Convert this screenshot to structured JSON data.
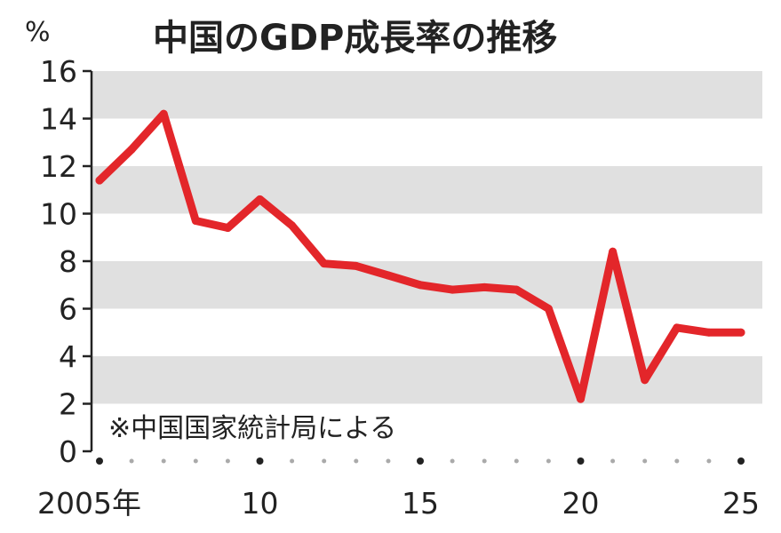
{
  "chart_data": {
    "type": "line",
    "title": "中国のGDP成長率の推移",
    "ylabel": "%",
    "source_note": "※中国国家統計局による",
    "ylim": [
      0,
      16
    ],
    "yticks": [
      0,
      2,
      4,
      6,
      8,
      10,
      12,
      14,
      16
    ],
    "xlim": [
      2005,
      2025
    ],
    "xtick_labels": [
      {
        "year": 2005,
        "label": "2005年"
      },
      {
        "year": 2010,
        "label": "10"
      },
      {
        "year": 2015,
        "label": "15"
      },
      {
        "year": 2020,
        "label": "20"
      },
      {
        "year": 2025,
        "label": "25"
      }
    ],
    "grid": "alternating horizontal bands",
    "series": [
      {
        "color": "#e3262a",
        "x": [
          2005,
          2006,
          2007,
          2008,
          2009,
          2010,
          2011,
          2012,
          2013,
          2014,
          2015,
          2016,
          2017,
          2018,
          2019,
          2020,
          2021,
          2022,
          2023,
          2024,
          2025
        ],
        "y": [
          11.4,
          12.7,
          14.2,
          9.7,
          9.4,
          10.6,
          9.5,
          7.9,
          7.8,
          7.4,
          7.0,
          6.8,
          6.9,
          6.8,
          6.0,
          2.2,
          8.4,
          3.0,
          5.2,
          5.0,
          5.0
        ]
      }
    ]
  }
}
